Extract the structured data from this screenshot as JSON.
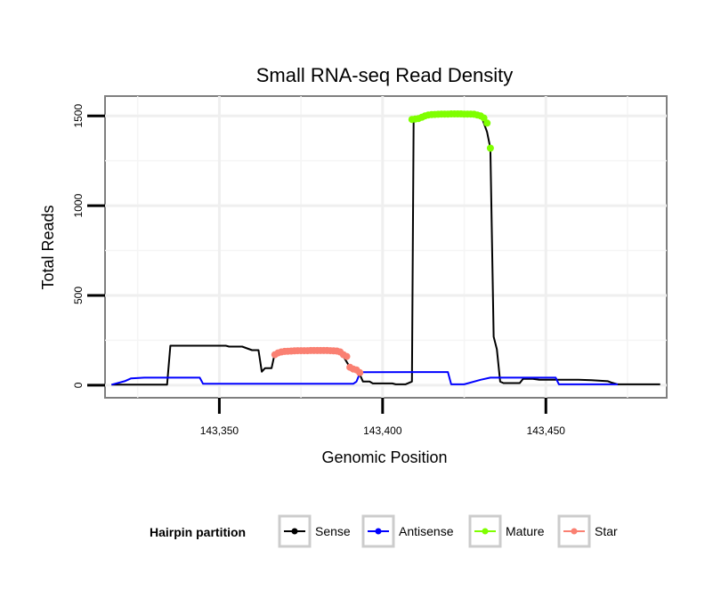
{
  "chart_data": {
    "type": "line",
    "title": "Small RNA-seq Read Density",
    "xlabel": "Genomic Position",
    "ylabel": "Total Reads",
    "xlim": [
      143315,
      143487
    ],
    "ylim": [
      -70,
      1610
    ],
    "x_ticks": [
      {
        "value": 143350,
        "label": "143,350"
      },
      {
        "value": 143400,
        "label": "143,400"
      },
      {
        "value": 143450,
        "label": "143,450"
      }
    ],
    "y_ticks": [
      {
        "value": 0,
        "label": "0"
      },
      {
        "value": 500,
        "label": "500"
      },
      {
        "value": 1000,
        "label": "1000"
      },
      {
        "value": 1500,
        "label": "1500"
      }
    ],
    "grid": true,
    "legend": {
      "title": "Hairpin partition",
      "placement": "bottom",
      "entries": [
        "Sense",
        "Antisense",
        "Mature",
        "Star"
      ]
    },
    "series": [
      {
        "name": "Sense",
        "color": "#000000",
        "marker": "line",
        "points": [
          [
            143317,
            3
          ],
          [
            143334,
            3
          ],
          [
            143335,
            220
          ],
          [
            143352,
            220
          ],
          [
            143353,
            215
          ],
          [
            143357,
            215
          ],
          [
            143360,
            195
          ],
          [
            143362,
            195
          ],
          [
            143363,
            75
          ],
          [
            143364,
            95
          ],
          [
            143366,
            95
          ],
          [
            143367,
            180
          ],
          [
            143387,
            190
          ],
          [
            143390,
            100
          ],
          [
            143393,
            60
          ],
          [
            143394,
            20
          ],
          [
            143396,
            20
          ],
          [
            143397,
            10
          ],
          [
            143403,
            10
          ],
          [
            143404,
            5
          ],
          [
            143407,
            5
          ],
          [
            143409,
            20
          ],
          [
            143409.5,
            1480
          ],
          [
            143412,
            1490
          ],
          [
            143414,
            1505
          ],
          [
            143430,
            1510
          ],
          [
            143432,
            1410
          ],
          [
            143433,
            1320
          ],
          [
            143434,
            270
          ],
          [
            143435,
            200
          ],
          [
            143436,
            20
          ],
          [
            143437,
            12
          ],
          [
            143442,
            12
          ],
          [
            143443,
            35
          ],
          [
            143446,
            35
          ],
          [
            143448,
            30
          ],
          [
            143460,
            30
          ],
          [
            143464,
            28
          ],
          [
            143469,
            22
          ],
          [
            143470,
            15
          ],
          [
            143472,
            5
          ],
          [
            143485,
            5
          ]
        ]
      },
      {
        "name": "Antisense",
        "color": "#0000ff",
        "marker": "line",
        "points": [
          [
            143317,
            3
          ],
          [
            143321,
            22
          ],
          [
            143323,
            38
          ],
          [
            143327,
            42
          ],
          [
            143344,
            42
          ],
          [
            143345,
            8
          ],
          [
            143365,
            8
          ],
          [
            143378,
            8
          ],
          [
            143391,
            8
          ],
          [
            143392,
            20
          ],
          [
            143393,
            65
          ],
          [
            143394,
            72
          ],
          [
            143412,
            73
          ],
          [
            143420,
            73
          ],
          [
            143421,
            5
          ],
          [
            143425,
            5
          ],
          [
            143430,
            30
          ],
          [
            143433,
            42
          ],
          [
            143453,
            42
          ],
          [
            143454,
            5
          ],
          [
            143472,
            5
          ]
        ]
      },
      {
        "name": "Mature",
        "color": "#7fff00",
        "marker": "points",
        "points": [
          [
            143409,
            1480
          ],
          [
            143410,
            1482
          ],
          [
            143411,
            1485
          ],
          [
            143412,
            1492
          ],
          [
            143413,
            1500
          ],
          [
            143414,
            1505
          ],
          [
            143415,
            1507
          ],
          [
            143416,
            1508
          ],
          [
            143417,
            1509
          ],
          [
            143418,
            1510
          ],
          [
            143419,
            1510
          ],
          [
            143420,
            1510
          ],
          [
            143421,
            1511
          ],
          [
            143422,
            1511
          ],
          [
            143423,
            1511
          ],
          [
            143424,
            1511
          ],
          [
            143425,
            1510
          ],
          [
            143426,
            1510
          ],
          [
            143427,
            1510
          ],
          [
            143428,
            1509
          ],
          [
            143429,
            1505
          ],
          [
            143430,
            1500
          ],
          [
            143431,
            1488
          ],
          [
            143432,
            1460
          ],
          [
            143433,
            1320
          ]
        ]
      },
      {
        "name": "Star",
        "color": "#fa8072",
        "marker": "points",
        "points": [
          [
            143367,
            170
          ],
          [
            143368,
            180
          ],
          [
            143369,
            185
          ],
          [
            143370,
            188
          ],
          [
            143371,
            189
          ],
          [
            143372,
            190
          ],
          [
            143373,
            191
          ],
          [
            143374,
            192
          ],
          [
            143375,
            192
          ],
          [
            143376,
            192
          ],
          [
            143377,
            192
          ],
          [
            143378,
            193
          ],
          [
            143379,
            193
          ],
          [
            143380,
            193
          ],
          [
            143381,
            193
          ],
          [
            143382,
            193
          ],
          [
            143383,
            193
          ],
          [
            143384,
            192
          ],
          [
            143385,
            191
          ],
          [
            143386,
            190
          ],
          [
            143387,
            185
          ],
          [
            143388,
            170
          ],
          [
            143389,
            160
          ],
          [
            143390,
            100
          ],
          [
            143391,
            90
          ],
          [
            143392,
            85
          ],
          [
            143393,
            70
          ]
        ]
      }
    ]
  }
}
